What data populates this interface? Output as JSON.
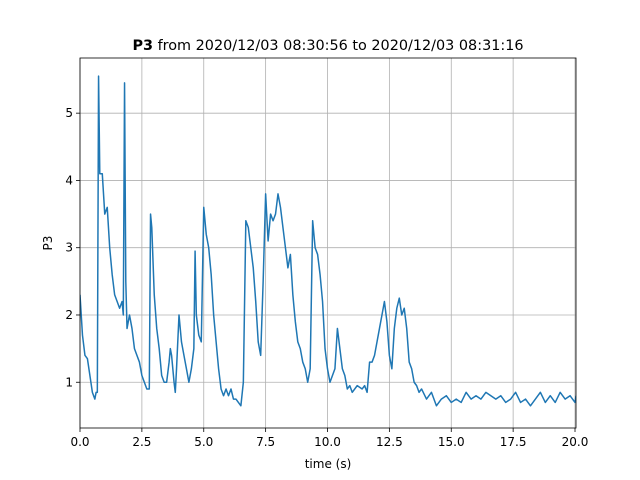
{
  "chart_data": {
    "type": "line",
    "title": {
      "variable": "P3",
      "text": "from 2020/12/03 08:30:56 to 2020/12/03 08:31:16"
    },
    "xlabel": "time (s)",
    "ylabel": "P3",
    "xlim": [
      0,
      20.04
    ],
    "ylim": [
      0.32,
      5.82
    ],
    "xticks": [
      {
        "value": 0,
        "label": "0.0"
      },
      2.5,
      {
        "value": 5,
        "label": "5.0"
      },
      7.5,
      {
        "value": 10,
        "label": "10.0"
      },
      12.5,
      {
        "value": 15,
        "label": "15.0"
      },
      17.5,
      {
        "value": 20,
        "label": "20.0"
      }
    ],
    "yticks": [
      1,
      2,
      3,
      4,
      5
    ],
    "grid": true,
    "x": [
      0,
      0.1,
      0.2,
      0.3,
      0.4,
      0.5,
      0.6,
      0.65,
      0.7,
      0.75,
      0.8,
      0.9,
      1.0,
      1.1,
      1.2,
      1.3,
      1.4,
      1.5,
      1.6,
      1.7,
      1.75,
      1.8,
      1.85,
      1.9,
      2.0,
      2.1,
      2.2,
      2.3,
      2.4,
      2.5,
      2.6,
      2.7,
      2.8,
      2.85,
      2.9,
      3.0,
      3.1,
      3.2,
      3.3,
      3.4,
      3.5,
      3.6,
      3.65,
      3.7,
      3.8,
      3.85,
      3.9,
      4.0,
      4.1,
      4.2,
      4.3,
      4.4,
      4.5,
      4.6,
      4.65,
      4.7,
      4.8,
      4.9,
      5.0,
      5.1,
      5.2,
      5.3,
      5.4,
      5.5,
      5.6,
      5.7,
      5.8,
      5.9,
      6.0,
      6.1,
      6.2,
      6.3,
      6.4,
      6.5,
      6.6,
      6.7,
      6.8,
      6.9,
      7.0,
      7.1,
      7.2,
      7.3,
      7.4,
      7.5,
      7.6,
      7.7,
      7.8,
      7.9,
      8.0,
      8.1,
      8.2,
      8.3,
      8.4,
      8.5,
      8.6,
      8.7,
      8.8,
      8.9,
      9.0,
      9.1,
      9.2,
      9.3,
      9.4,
      9.5,
      9.6,
      9.7,
      9.8,
      9.9,
      10.0,
      10.1,
      10.2,
      10.3,
      10.4,
      10.5,
      10.6,
      10.7,
      10.8,
      10.9,
      11.0,
      11.2,
      11.4,
      11.5,
      11.6,
      11.7,
      11.8,
      11.9,
      12.0,
      12.1,
      12.2,
      12.3,
      12.4,
      12.5,
      12.6,
      12.7,
      12.8,
      12.9,
      13.0,
      13.1,
      13.2,
      13.3,
      13.4,
      13.5,
      13.6,
      13.7,
      13.8,
      14.0,
      14.2,
      14.4,
      14.6,
      14.8,
      15.0,
      15.2,
      15.4,
      15.6,
      15.8,
      16.0,
      16.2,
      16.4,
      16.6,
      16.8,
      17.0,
      17.2,
      17.4,
      17.6,
      17.8,
      18.0,
      18.2,
      18.4,
      18.6,
      18.8,
      19.0,
      19.2,
      19.4,
      19.6,
      19.8,
      20.0,
      20.04
    ],
    "series": [
      {
        "name": "P3",
        "color": "#1f77b4",
        "values": [
          2.3,
          1.7,
          1.4,
          1.35,
          1.1,
          0.85,
          0.75,
          0.85,
          0.85,
          5.55,
          4.1,
          4.1,
          3.5,
          3.6,
          3.0,
          2.6,
          2.3,
          2.2,
          2.1,
          2.2,
          2.0,
          5.45,
          2.5,
          1.8,
          2.0,
          1.8,
          1.5,
          1.4,
          1.3,
          1.1,
          1.0,
          0.9,
          0.9,
          3.5,
          3.3,
          2.3,
          1.8,
          1.5,
          1.1,
          1.0,
          1.0,
          1.3,
          1.5,
          1.4,
          1.0,
          0.85,
          1.2,
          2.0,
          1.6,
          1.4,
          1.2,
          1.0,
          1.2,
          1.5,
          2.95,
          2.0,
          1.7,
          1.6,
          3.6,
          3.2,
          3.0,
          2.6,
          2.0,
          1.6,
          1.2,
          0.9,
          0.8,
          0.9,
          0.8,
          0.9,
          0.75,
          0.75,
          0.7,
          0.65,
          1.0,
          3.4,
          3.3,
          3.0,
          2.7,
          2.2,
          1.6,
          1.4,
          2.5,
          3.8,
          3.1,
          3.5,
          3.4,
          3.5,
          3.8,
          3.6,
          3.3,
          3.0,
          2.7,
          2.9,
          2.3,
          1.9,
          1.6,
          1.5,
          1.3,
          1.2,
          1.0,
          1.2,
          3.4,
          3.0,
          2.9,
          2.6,
          2.2,
          1.5,
          1.2,
          1.0,
          1.1,
          1.2,
          1.8,
          1.5,
          1.2,
          1.1,
          0.9,
          0.95,
          0.85,
          0.95,
          0.9,
          0.95,
          0.85,
          1.3,
          1.3,
          1.4,
          1.6,
          1.8,
          2.0,
          2.2,
          1.9,
          1.4,
          1.2,
          1.8,
          2.1,
          2.25,
          2.0,
          2.1,
          1.8,
          1.3,
          1.2,
          1.0,
          0.95,
          0.85,
          0.9,
          0.75,
          0.85,
          0.65,
          0.75,
          0.8,
          0.7,
          0.75,
          0.7,
          0.85,
          0.75,
          0.8,
          0.75,
          0.85,
          0.8,
          0.75,
          0.8,
          0.7,
          0.75,
          0.85,
          0.7,
          0.75,
          0.65,
          0.75,
          0.85,
          0.7,
          0.8,
          0.7,
          0.85,
          0.75,
          0.8,
          0.7,
          0.8
        ]
      }
    ]
  }
}
